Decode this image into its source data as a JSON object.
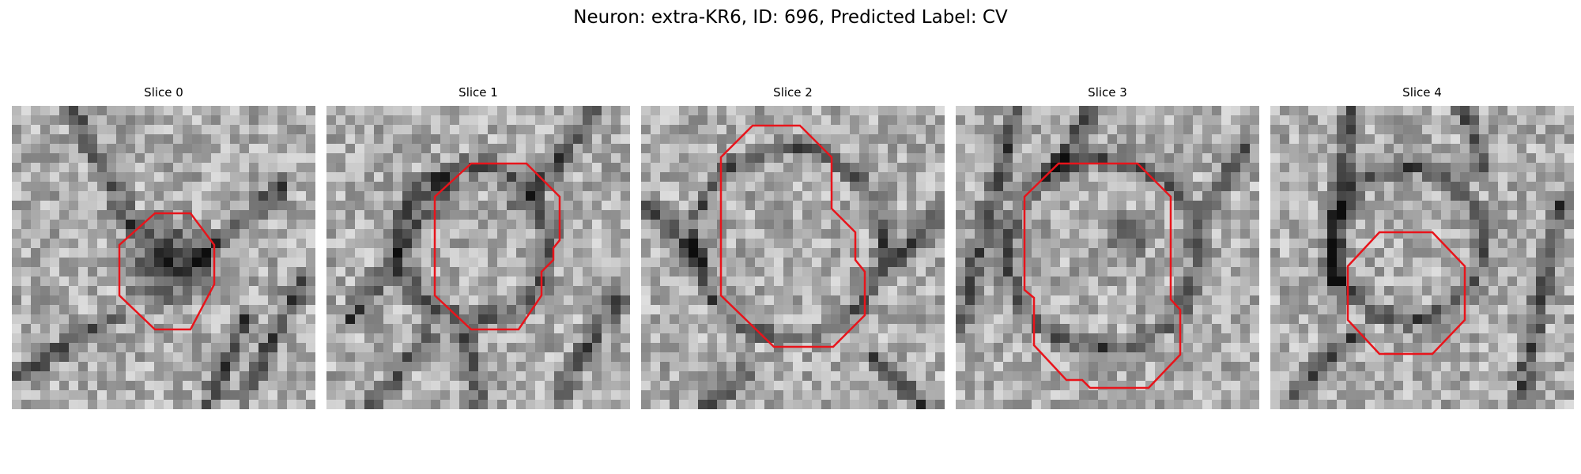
{
  "figure": {
    "title": "Neuron: extra-KR6, ID: 696, Predicted Label: CV"
  },
  "contour_color": "#e8141b",
  "panels": [
    {
      "title": "Slice 0"
    },
    {
      "title": "Slice 1"
    },
    {
      "title": "Slice 2"
    },
    {
      "title": "Slice 3"
    },
    {
      "title": "Slice 4"
    }
  ]
}
